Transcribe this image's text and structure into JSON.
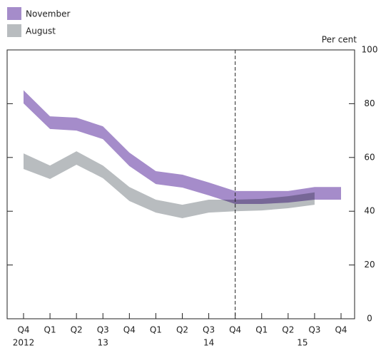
{
  "chart_data": {
    "type": "band",
    "unit_label": "Per cent",
    "categories": [
      "Q4",
      "Q1",
      "Q2",
      "Q3",
      "Q4",
      "Q1",
      "Q2",
      "Q3",
      "Q4",
      "Q1",
      "Q2",
      "Q3",
      "Q4"
    ],
    "year_labels": [
      "2012",
      null,
      null,
      "13",
      null,
      null,
      null,
      "14",
      null,
      null,
      null,
      "15",
      null
    ],
    "series": [
      {
        "name": "November",
        "color": "#a58cca",
        "upper": [
          85,
          75.3,
          74.8,
          71.6,
          61.8,
          54.9,
          53.6,
          50.7,
          47.5,
          47.5,
          47.5,
          49,
          49
        ],
        "lower": [
          80.1,
          70.6,
          70,
          66.8,
          56.8,
          50.1,
          48.8,
          45.9,
          42.7,
          42.7,
          43.2,
          44.3,
          44.3
        ]
      },
      {
        "name": "August",
        "color": "#b8bcbf",
        "upper": [
          61.5,
          57,
          62.3,
          57,
          49,
          44.3,
          42.4,
          44.3,
          44.3,
          44.6,
          45.6,
          47,
          null
        ],
        "lower": [
          55.7,
          52,
          57.3,
          52.3,
          43.8,
          39.5,
          37.4,
          39.5,
          40,
          40.3,
          41.1,
          42.4,
          null
        ]
      }
    ],
    "dashed_line_x": 8,
    "ylim": [
      0,
      100
    ],
    "yticks": [
      0,
      20,
      40,
      60,
      80,
      100
    ]
  }
}
